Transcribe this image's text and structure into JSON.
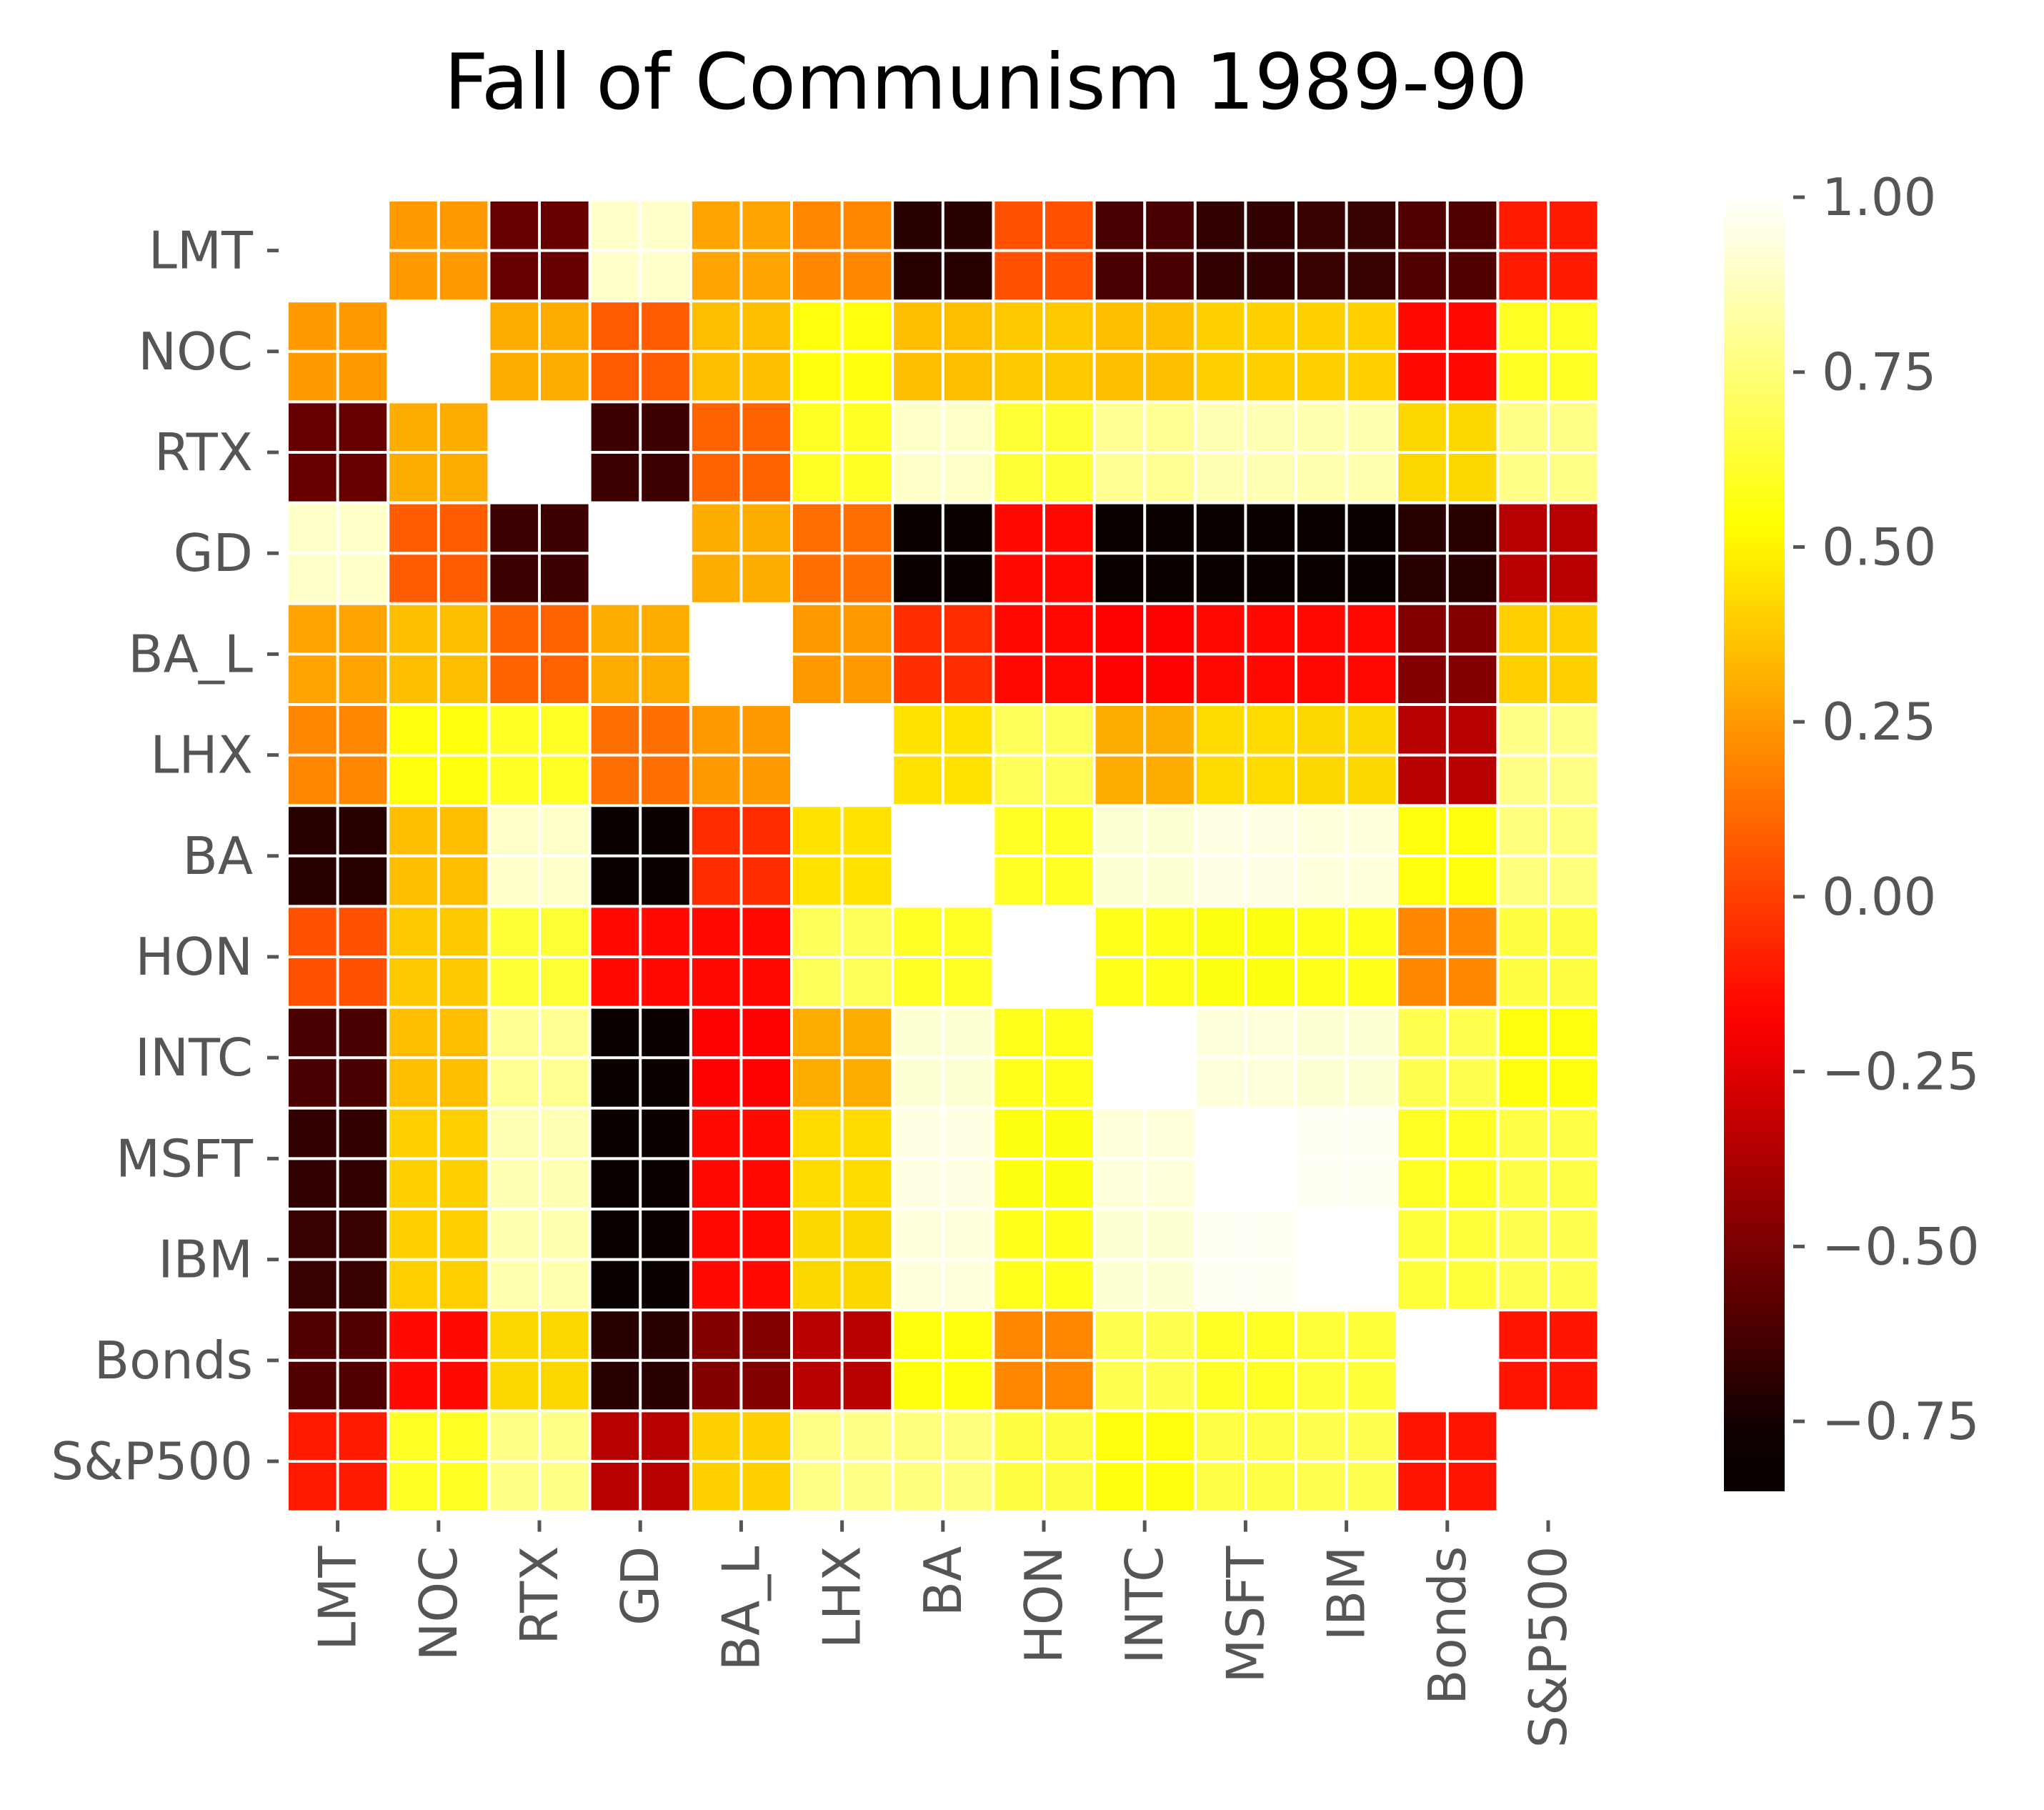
{
  "chart_data": {
    "type": "heatmap",
    "title": "Fall of Communism 1989-90",
    "labels": [
      "LMT",
      "NOC",
      "RTX",
      "GD",
      "BA_L",
      "LHX",
      "BA",
      "HON",
      "INTC",
      "MSFT",
      "IBM",
      "Bonds",
      "S&P500"
    ],
    "values": [
      [
        null,
        0.25,
        -0.55,
        0.9,
        0.28,
        0.2,
        -0.7,
        0.05,
        -0.62,
        -0.68,
        -0.66,
        -0.6,
        -0.1
      ],
      [
        0.25,
        null,
        0.3,
        0.08,
        0.35,
        0.55,
        0.35,
        0.38,
        0.35,
        0.4,
        0.4,
        -0.15,
        0.6
      ],
      [
        -0.55,
        0.3,
        null,
        -0.65,
        0.1,
        0.6,
        0.9,
        0.63,
        0.8,
        0.86,
        0.85,
        0.42,
        0.78
      ],
      [
        0.9,
        0.08,
        -0.65,
        null,
        0.3,
        0.13,
        -0.8,
        -0.15,
        -0.83,
        -0.8,
        -0.82,
        -0.7,
        -0.35
      ],
      [
        0.28,
        0.35,
        0.1,
        0.3,
        null,
        0.25,
        -0.05,
        -0.15,
        -0.18,
        -0.15,
        -0.15,
        -0.48,
        0.4
      ],
      [
        0.2,
        0.55,
        0.6,
        0.13,
        0.25,
        null,
        0.45,
        0.7,
        0.3,
        0.43,
        0.42,
        -0.35,
        0.78
      ],
      [
        -0.7,
        0.35,
        0.9,
        -0.8,
        -0.05,
        0.45,
        null,
        0.6,
        0.92,
        0.95,
        0.94,
        0.55,
        0.76
      ],
      [
        0.05,
        0.38,
        0.63,
        -0.15,
        -0.15,
        0.7,
        0.6,
        null,
        0.58,
        0.56,
        0.58,
        0.2,
        0.65
      ],
      [
        -0.62,
        0.35,
        0.8,
        -0.83,
        -0.18,
        0.3,
        0.92,
        0.58,
        null,
        0.93,
        0.92,
        0.68,
        0.55
      ],
      [
        -0.68,
        0.4,
        0.86,
        -0.8,
        -0.15,
        0.43,
        0.95,
        0.56,
        0.93,
        null,
        0.98,
        0.6,
        0.66
      ],
      [
        -0.66,
        0.4,
        0.85,
        -0.82,
        -0.15,
        0.42,
        0.94,
        0.58,
        0.92,
        0.98,
        null,
        0.64,
        0.68
      ],
      [
        -0.6,
        -0.15,
        0.42,
        -0.7,
        -0.48,
        -0.35,
        0.55,
        0.2,
        0.68,
        0.6,
        0.64,
        null,
        -0.12
      ],
      [
        -0.1,
        0.6,
        0.78,
        -0.35,
        0.4,
        0.78,
        0.76,
        0.65,
        0.55,
        0.66,
        0.68,
        -0.12,
        null
      ]
    ],
    "diagonal": "blank (white)",
    "colormap": "hot",
    "colorbar": {
      "vmin": -0.85,
      "vmax": 1.0,
      "ticks": [
        1.0,
        0.75,
        0.5,
        0.25,
        0.0,
        -0.25,
        -0.5,
        -0.75
      ],
      "tick_labels": [
        "1.00",
        "0.75",
        "0.50",
        "0.25",
        "0.00",
        "−0.25",
        "−0.50",
        "−0.75"
      ],
      "position": "right"
    },
    "grid": true,
    "xlabel": "",
    "ylabel": ""
  },
  "colors": {
    "grid": "#ffffff",
    "tick_text": "#555555",
    "title_text": "#000000",
    "background": "#ffffff"
  }
}
